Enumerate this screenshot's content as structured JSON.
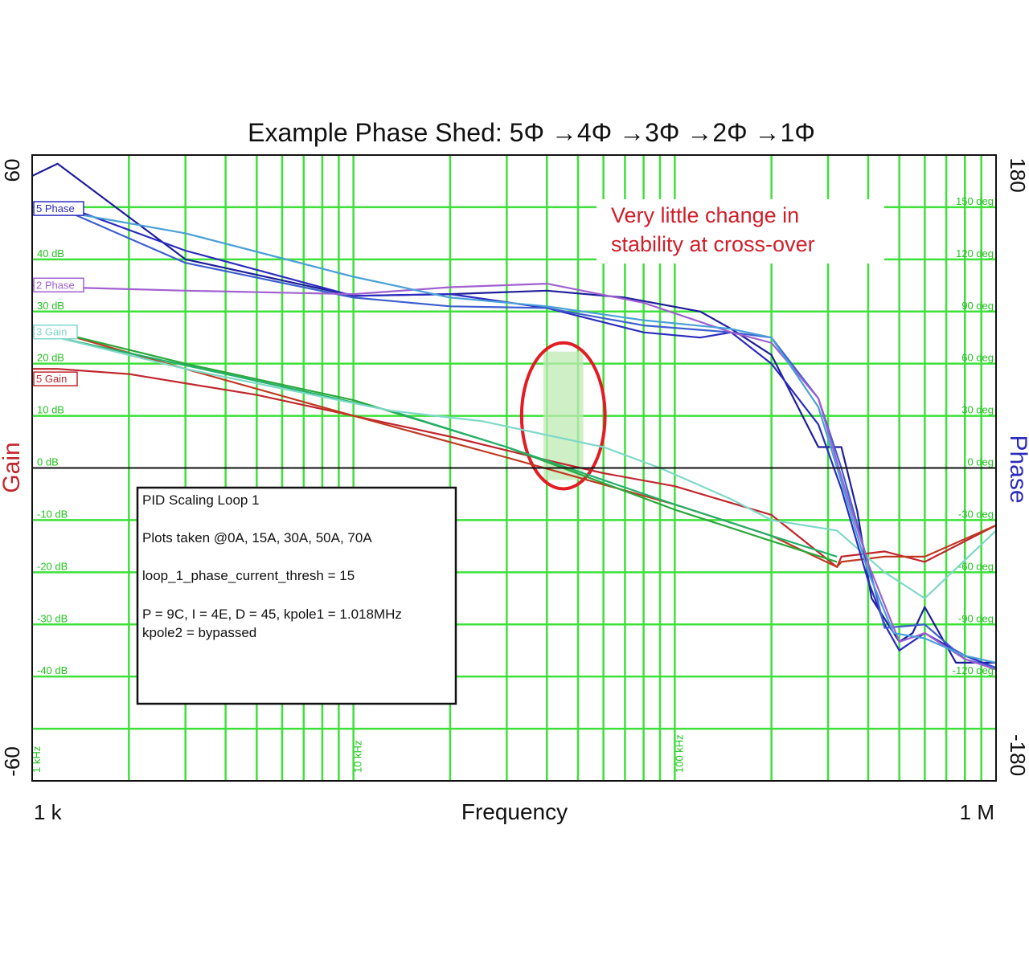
{
  "chart_data": {
    "type": "line",
    "title": "Example Phase Shed: 5Φ →4Φ →3Φ →2Φ →1Φ",
    "xlabel": "Frequency",
    "x_tick_labels": [
      "1 k",
      "1 M"
    ],
    "x_scale": "log",
    "xlim": [
      1000,
      1000000
    ],
    "inner_x_labels": [
      {
        "f": 1000,
        "text": "1 kHz"
      },
      {
        "f": 10000,
        "text": "10 kHz"
      },
      {
        "f": 100000,
        "text": "100 kHz"
      }
    ],
    "left_axis": {
      "label": "Gain",
      "min_label": "-60",
      "max_label": "60",
      "ylim": [
        -60,
        60
      ]
    },
    "right_axis": {
      "label": "Phase",
      "min_label": "-180",
      "max_label": "180",
      "ylim": [
        -180,
        180
      ]
    },
    "gain_tick_labels": [
      {
        "v": 40,
        "text": "40 dB"
      },
      {
        "v": 30,
        "text": "30 dB"
      },
      {
        "v": 20,
        "text": "20 dB"
      },
      {
        "v": 10,
        "text": "10 dB"
      },
      {
        "v": 0,
        "text": "0 dB"
      },
      {
        "v": -10,
        "text": "-10 dB"
      },
      {
        "v": -20,
        "text": "-20 dB"
      },
      {
        "v": -30,
        "text": "-30 dB"
      },
      {
        "v": -40,
        "text": "-40 dB"
      }
    ],
    "phase_tick_labels": [
      {
        "v": 150,
        "text": "150 deg"
      },
      {
        "v": 120,
        "text": "120 deg"
      },
      {
        "v": 90,
        "text": "90 deg"
      },
      {
        "v": 60,
        "text": "60 deg"
      },
      {
        "v": 30,
        "text": "30 deg"
      },
      {
        "v": 0,
        "text": "0 deg"
      },
      {
        "v": -30,
        "text": "-30 deg"
      },
      {
        "v": -60,
        "text": "-60 deg"
      },
      {
        "v": -90,
        "text": "-90 deg"
      },
      {
        "v": -120,
        "text": "-120 deg"
      }
    ],
    "series_tags": [
      {
        "text": "5 Phase",
        "color": "#2b2bbf",
        "axis": "phase",
        "v": 149
      },
      {
        "text": "2 Phase",
        "color": "#a060d0",
        "axis": "phase",
        "v": 105
      },
      {
        "text": "3 Gain",
        "color": "#7fd8c8",
        "axis": "gain",
        "v": 26
      },
      {
        "text": "5 Gain",
        "color": "#c0272d",
        "axis": "gain",
        "v": 17
      }
    ],
    "series": [
      {
        "axis": "gain",
        "color": "#c0272d",
        "x": [
          1000,
          1200,
          2000,
          5000,
          10000,
          20000,
          40000,
          60000,
          100000,
          200000,
          320000,
          330000,
          450000,
          600000,
          1000000
        ],
        "y": [
          19,
          19,
          18,
          14,
          10,
          6,
          1.5,
          -1,
          -3.5,
          -9,
          -19,
          -17,
          -16,
          -18,
          -11
        ]
      },
      {
        "axis": "gain",
        "color": "#c03a22",
        "x": [
          1000,
          1200,
          3000,
          10000,
          30000,
          100000,
          200000,
          320000,
          330000,
          450000,
          600000,
          1000000
        ],
        "y": [
          27,
          26,
          19,
          10,
          2,
          -7,
          -13,
          -19,
          -18,
          -17,
          -17,
          -11
        ]
      },
      {
        "axis": "gain",
        "color": "#2aa83a",
        "x": [
          1000,
          1200,
          3000,
          10000,
          30000,
          100000,
          200000,
          320000
        ],
        "y": [
          27,
          26,
          20,
          13,
          4,
          -8,
          -14,
          -18
        ]
      },
      {
        "axis": "gain",
        "color": "#23b06a",
        "x": [
          1000,
          1200,
          4000,
          13000,
          30000,
          100000,
          200000,
          320000
        ],
        "y": [
          27,
          25,
          18,
          11,
          4,
          -7,
          -13,
          -17
        ]
      },
      {
        "axis": "gain",
        "color": "#7fd8c8",
        "x": [
          1000,
          1200,
          3000,
          13000,
          25000,
          60000,
          90000,
          150000,
          200000,
          320000,
          450000,
          600000,
          1000000
        ],
        "y": [
          27,
          25,
          19,
          11,
          9,
          4,
          0,
          -6,
          -10,
          -12,
          -20,
          -25,
          -12
        ]
      },
      {
        "axis": "phase",
        "color": "#1e1e9a",
        "x": [
          1000,
          1200,
          3000,
          10000,
          20000,
          40000,
          70000,
          120000,
          150000,
          200000,
          280000,
          330000,
          370000,
          410000,
          500000,
          550000,
          600000,
          750000,
          1000000
        ],
        "y": [
          168,
          175,
          120,
          99,
          100,
          102,
          98,
          90,
          80,
          65,
          12,
          12,
          -25,
          -75,
          -100,
          -95,
          -80,
          -112,
          -112
        ]
      },
      {
        "axis": "phase",
        "color": "#2b2bbf",
        "x": [
          1000,
          1200,
          3000,
          10000,
          20000,
          40000,
          80000,
          120000,
          150000,
          200000,
          280000,
          330000,
          400000,
          450000,
          500000,
          600000,
          800000,
          1000000
        ],
        "y": [
          150,
          152,
          125,
          99,
          100,
          92,
          78,
          75,
          78,
          60,
          25,
          -12,
          -65,
          -90,
          -105,
          -95,
          -108,
          -115
        ]
      },
      {
        "axis": "phase",
        "color": "#3d5fd0",
        "x": [
          1000,
          1200,
          3000,
          10000,
          20000,
          40000,
          80000,
          150000,
          200000,
          280000,
          330000,
          400000,
          450000,
          600000,
          800000,
          1000000
        ],
        "y": [
          150,
          150,
          118,
          98,
          93,
          92,
          82,
          78,
          75,
          40,
          0,
          -55,
          -92,
          -90,
          -110,
          -115
        ]
      },
      {
        "axis": "phase",
        "color": "#a060d0",
        "x": [
          1000,
          1200,
          3000,
          10000,
          20000,
          40000,
          80000,
          150000,
          200000,
          280000,
          330000,
          400000,
          500000,
          600000,
          800000,
          1000000
        ],
        "y": [
          105,
          104,
          102,
          100,
          104,
          106,
          95,
          78,
          72,
          40,
          -5,
          -55,
          -100,
          -95,
          -110,
          -116
        ]
      },
      {
        "axis": "phase",
        "color": "#4aa0d8",
        "x": [
          1000,
          1200,
          3000,
          10000,
          20000,
          40000,
          80000,
          150000,
          200000,
          280000,
          330000,
          400000,
          480000,
          600000,
          800000,
          1000000
        ],
        "y": [
          150,
          148,
          135,
          110,
          98,
          93,
          85,
          80,
          75,
          35,
          -8,
          -60,
          -95,
          -98,
          -108,
          -112
        ]
      }
    ],
    "grid": true,
    "annotation": {
      "lines": [
        "Very little change in",
        "stability at cross-over"
      ],
      "color": "#d01f2a"
    },
    "highlight": {
      "shape": "ellipse",
      "edge_color": "#e31b23",
      "fill_color": "#bfeab4",
      "f_center": 45000,
      "f_low": 33000,
      "f_high": 60000,
      "gain_center": 10,
      "gain_low": -5,
      "gain_high": 23
    }
  },
  "info_box": {
    "title": "PID Scaling Loop 1",
    "line1": "Plots taken @0A, 15A, 30A, 50A, 70A",
    "line2": "loop_1_phase_current_thresh = 15",
    "line3": "P = 9C, I = 4E, D = 45, kpole1 = 1.018MHz",
    "line4": "kpole2 = bypassed"
  }
}
